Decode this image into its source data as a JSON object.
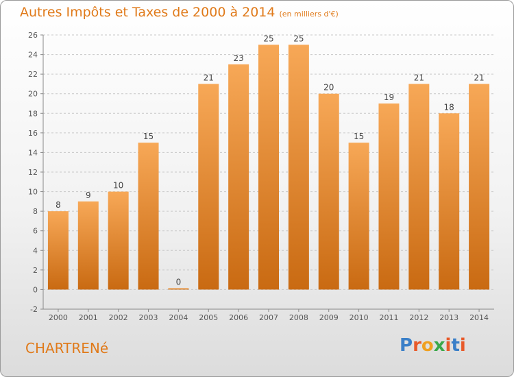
{
  "title": "Autres Impôts et Taxes de 2000 à 2014",
  "title_unit": "(en milliers d'€)",
  "town": "CHARTRENé",
  "logo": {
    "letters": [
      "P",
      "r",
      "o",
      "x",
      "i",
      "t",
      "i"
    ],
    "colors": [
      "#3a7fc8",
      "#e85a2a",
      "#f0a020",
      "#3aa84a",
      "#e85a2a",
      "#3a7fc8",
      "#e85a2a"
    ]
  },
  "colors": {
    "bar_top": "#f7a857",
    "bar_bottom": "#c96a12",
    "accent": "#e07a1a"
  },
  "chart_data": {
    "type": "bar",
    "title": "Autres Impôts et Taxes de 2000 à 2014",
    "categories": [
      "2000",
      "2001",
      "2002",
      "2003",
      "2004",
      "2005",
      "2006",
      "2007",
      "2008",
      "2009",
      "2010",
      "2011",
      "2012",
      "2013",
      "2014"
    ],
    "values": [
      8,
      9,
      10,
      15,
      0,
      21,
      23,
      25,
      25,
      20,
      15,
      19,
      21,
      18,
      21
    ],
    "data_labels": [
      "8",
      "9",
      "10",
      "15",
      "0",
      "21",
      "23",
      "25",
      "25",
      "20",
      "15",
      "19",
      "21",
      "18",
      "21"
    ],
    "yticks": [
      -2,
      0,
      2,
      4,
      6,
      8,
      10,
      12,
      14,
      16,
      18,
      20,
      22,
      24,
      26
    ],
    "ylim": [
      -2,
      26
    ],
    "grid": "horizontal-dashed",
    "legend": "none"
  }
}
